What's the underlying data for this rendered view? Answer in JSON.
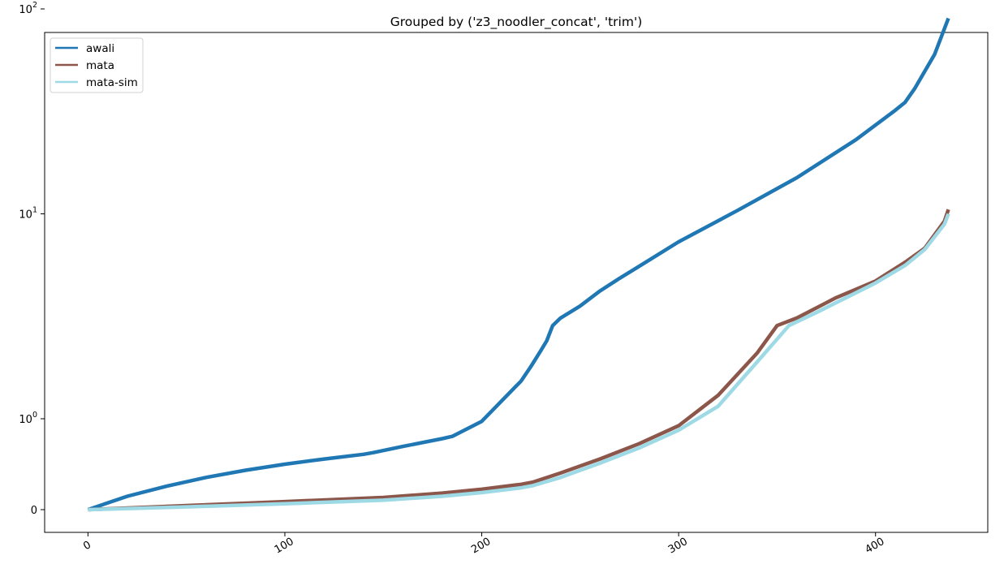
{
  "chart_data": {
    "type": "line",
    "title": "Grouped by ('z3_noodler_concat', 'trim')",
    "xlabel": "",
    "ylabel": "",
    "xlim": [
      -22,
      457
    ],
    "x_ticks": [
      0,
      100,
      200,
      300,
      400
    ],
    "y_scale": "symlog",
    "y_linthresh": 1,
    "y_ticks": [
      {
        "value": 0,
        "base": "",
        "exp": "",
        "plain": "0"
      },
      {
        "value": 1,
        "base": "10",
        "exp": "0",
        "plain": ""
      },
      {
        "value": 10,
        "base": "10",
        "exp": "1",
        "plain": ""
      },
      {
        "value": 100,
        "base": "10",
        "exp": "2",
        "plain": ""
      }
    ],
    "legend_position": "upper-left",
    "grid": false,
    "series": [
      {
        "name": "awali",
        "color": "#1f77b4",
        "x": [
          0,
          20,
          40,
          60,
          80,
          100,
          120,
          140,
          145,
          160,
          180,
          185,
          200,
          220,
          225,
          230,
          233,
          236,
          240,
          250,
          260,
          270,
          280,
          300,
          330,
          360,
          390,
          410,
          415,
          420,
          430,
          437
        ],
        "y": [
          0,
          0.045,
          0.09,
          0.14,
          0.19,
          0.24,
          0.29,
          0.34,
          0.36,
          0.44,
          0.56,
          0.6,
          0.93,
          1.53,
          1.8,
          2.15,
          2.4,
          2.85,
          3.1,
          3.55,
          4.2,
          4.85,
          5.55,
          7.3,
          10.4,
          15.0,
          23.0,
          32.0,
          35.0,
          41.0,
          60.0,
          90.0
        ]
      },
      {
        "name": "mata",
        "color": "#8c564b",
        "x": [
          0,
          50,
          100,
          150,
          180,
          200,
          220,
          226,
          240,
          260,
          280,
          300,
          320,
          340,
          350,
          360,
          380,
          400,
          415,
          425,
          435,
          437
        ],
        "y": [
          0,
          0.012,
          0.025,
          0.04,
          0.058,
          0.075,
          0.1,
          0.112,
          0.17,
          0.29,
          0.48,
          0.82,
          1.3,
          2.1,
          2.85,
          3.1,
          3.9,
          4.7,
          5.8,
          6.8,
          9.2,
          10.5
        ]
      },
      {
        "name": "mata-sim",
        "color": "#9edae5",
        "x": [
          0,
          50,
          100,
          150,
          180,
          200,
          220,
          226,
          240,
          260,
          280,
          300,
          320,
          340,
          356,
          370,
          400,
          415,
          425,
          435,
          437
        ],
        "y": [
          0,
          0.008,
          0.018,
          0.03,
          0.045,
          0.06,
          0.082,
          0.093,
          0.14,
          0.25,
          0.42,
          0.72,
          1.15,
          1.9,
          2.85,
          3.3,
          4.6,
          5.6,
          6.7,
          8.9,
          10.0
        ]
      }
    ]
  }
}
